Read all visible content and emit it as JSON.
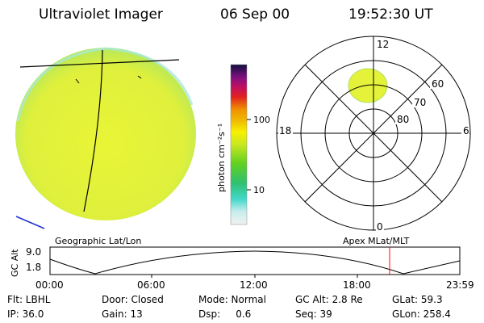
{
  "header": {
    "instrument": "Ultraviolet Imager",
    "date": "06 Sep 00",
    "time": "19:52:30 UT"
  },
  "colorbar": {
    "unit_label": "photon cm⁻²s⁻¹",
    "tick_100": "100",
    "tick_10": "10"
  },
  "polar_plot": {
    "mlt_top": "12",
    "mlt_bottom": "0",
    "mlt_left": "18",
    "mlt_right": "6",
    "lat_60": "60",
    "lat_70": "70",
    "lat_80": "80"
  },
  "orbit_strip": {
    "y_axis_label": "GC Alt",
    "y_top": "9.0",
    "y_bottom": "1.8",
    "left_caption": "Geographic Lat/Lon",
    "right_caption": "Apex  MLat/MLT",
    "time_ticks": [
      "00:00",
      "06:00",
      "12:00",
      "18:00",
      "23:59"
    ]
  },
  "status_rows": {
    "row1": [
      "Flt: LBHL",
      "Door: Closed",
      "Mode: Normal",
      "GC Alt: 2.8 Re",
      "GLat:  59.3"
    ],
    "row2": [
      "IP: 36.0",
      "Gain: 13",
      "Dsp:     0.6",
      "Seq: 39",
      "GLon: 258.4"
    ]
  },
  "colors": {
    "disk": "#e6f23a",
    "disk_edge": "#9ee07a",
    "orbit_marker": "#ff0000",
    "grid": "#000000"
  }
}
